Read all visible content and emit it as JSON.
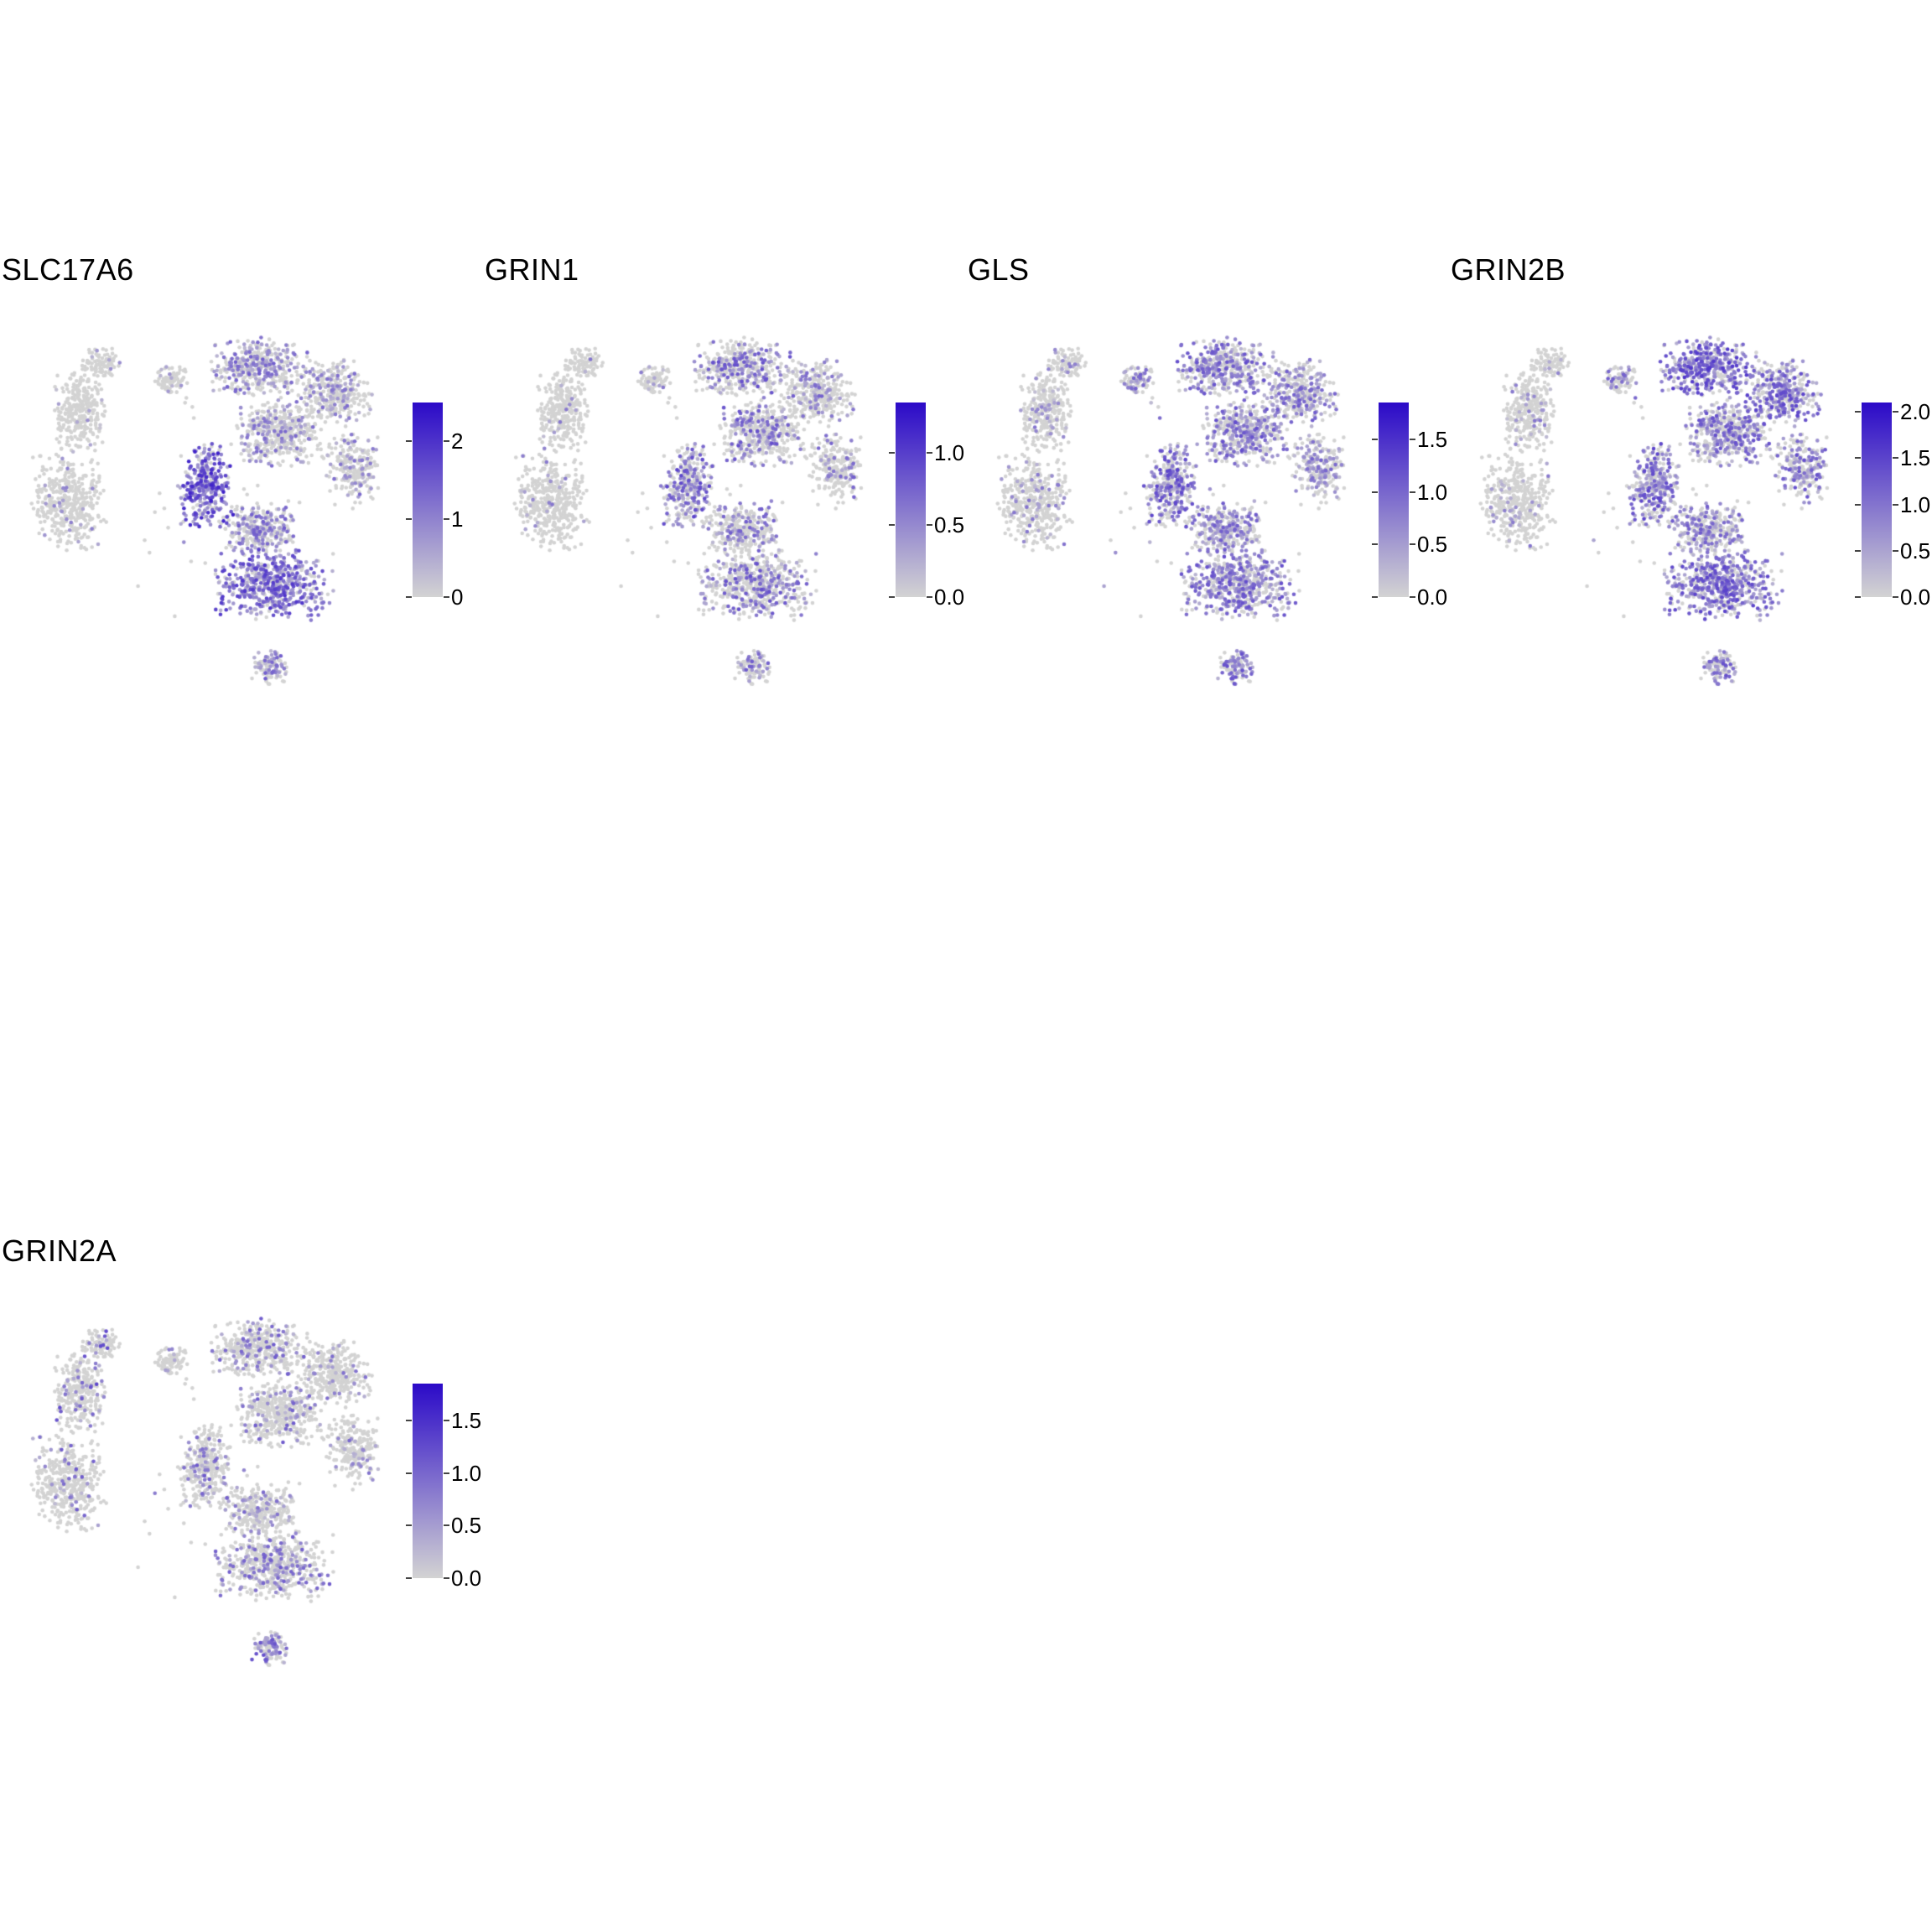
{
  "chart_data": {
    "type": "scatter",
    "subtype": "umap-feature-plot-grid",
    "description_fields": {
      "grid": "5 UMAP feature plots, 4 on top row, 1 on second row",
      "legend_position": "right of each plot, vertical colourbar"
    },
    "colors": {
      "low": "#d3d3d3",
      "high": "#2b0ac8",
      "background": "#ffffff"
    },
    "point_radius": 2.3,
    "clusters": [
      {
        "id": "left-hook",
        "cx": 0.24,
        "cy": 0.09,
        "rx": 0.055,
        "ry": 0.045,
        "n": 90
      },
      {
        "id": "left-upper",
        "cx": 0.185,
        "cy": 0.22,
        "rx": 0.075,
        "ry": 0.115,
        "n": 300
      },
      {
        "id": "left-lower",
        "cx": 0.155,
        "cy": 0.47,
        "rx": 0.105,
        "ry": 0.145,
        "n": 420
      },
      {
        "id": "iso-blob",
        "cx": 0.425,
        "cy": 0.135,
        "rx": 0.05,
        "ry": 0.04,
        "n": 80
      },
      {
        "id": "main-top",
        "cx": 0.655,
        "cy": 0.1,
        "rx": 0.135,
        "ry": 0.085,
        "n": 420
      },
      {
        "id": "main-upper-right",
        "cx": 0.855,
        "cy": 0.17,
        "rx": 0.1,
        "ry": 0.095,
        "n": 330
      },
      {
        "id": "main-right",
        "cx": 0.905,
        "cy": 0.38,
        "rx": 0.075,
        "ry": 0.105,
        "n": 240
      },
      {
        "id": "main-center",
        "cx": 0.71,
        "cy": 0.28,
        "rx": 0.12,
        "ry": 0.1,
        "n": 430
      },
      {
        "id": "main-left",
        "cx": 0.515,
        "cy": 0.43,
        "rx": 0.075,
        "ry": 0.125,
        "n": 310
      },
      {
        "id": "main-mid-low",
        "cx": 0.655,
        "cy": 0.545,
        "rx": 0.1,
        "ry": 0.075,
        "n": 300
      },
      {
        "id": "main-bottom",
        "cx": 0.69,
        "cy": 0.7,
        "rx": 0.165,
        "ry": 0.105,
        "n": 560
      },
      {
        "id": "bottom-blob",
        "cx": 0.685,
        "cy": 0.925,
        "rx": 0.05,
        "ry": 0.05,
        "n": 100
      },
      {
        "id": "noise",
        "cx": 0.55,
        "cy": 0.42,
        "rx": 0.42,
        "ry": 0.4,
        "n": 50
      }
    ],
    "panels": [
      {
        "title": "SLC17A6",
        "vmax": 2.5,
        "legend_ticks": [
          {
            "label": "0",
            "value": 0
          },
          {
            "label": "1",
            "value": 1
          },
          {
            "label": "2",
            "value": 2
          }
        ],
        "expression": {
          "left-hook": {
            "p": 0.04,
            "m": 0.3
          },
          "left-upper": {
            "p": 0.05,
            "m": 0.3
          },
          "left-lower": {
            "p": 0.06,
            "m": 0.35
          },
          "iso-blob": {
            "p": 0.1,
            "m": 0.3
          },
          "main-top": {
            "p": 0.38,
            "m": 0.5
          },
          "main-upper-right": {
            "p": 0.28,
            "m": 0.45
          },
          "main-right": {
            "p": 0.22,
            "m": 0.45
          },
          "main-center": {
            "p": 0.3,
            "m": 0.45
          },
          "main-left": {
            "p": 0.85,
            "m": 0.75
          },
          "main-mid-low": {
            "p": 0.45,
            "m": 0.5
          },
          "main-bottom": {
            "p": 0.8,
            "m": 0.65
          },
          "bottom-blob": {
            "p": 0.55,
            "m": 0.5
          },
          "noise": {
            "p": 0.2,
            "m": 0.4
          }
        }
      },
      {
        "title": "GRIN1",
        "vmax": 1.35,
        "legend_ticks": [
          {
            "label": "0.0",
            "value": 0
          },
          {
            "label": "0.5",
            "value": 0.5
          },
          {
            "label": "1.0",
            "value": 1.0
          }
        ],
        "expression": {
          "left-hook": {
            "p": 0.05,
            "m": 0.4
          },
          "left-upper": {
            "p": 0.05,
            "m": 0.4
          },
          "left-lower": {
            "p": 0.05,
            "m": 0.4
          },
          "iso-blob": {
            "p": 0.08,
            "m": 0.4
          },
          "main-top": {
            "p": 0.3,
            "m": 0.55
          },
          "main-upper-right": {
            "p": 0.22,
            "m": 0.5
          },
          "main-right": {
            "p": 0.18,
            "m": 0.5
          },
          "main-center": {
            "p": 0.35,
            "m": 0.55
          },
          "main-left": {
            "p": 0.45,
            "m": 0.6
          },
          "main-mid-low": {
            "p": 0.3,
            "m": 0.5
          },
          "main-bottom": {
            "p": 0.35,
            "m": 0.55
          },
          "bottom-blob": {
            "p": 0.35,
            "m": 0.5
          },
          "noise": {
            "p": 0.15,
            "m": 0.5
          }
        }
      },
      {
        "title": "GLS",
        "vmax": 1.85,
        "legend_ticks": [
          {
            "label": "0.0",
            "value": 0
          },
          {
            "label": "0.5",
            "value": 0.5
          },
          {
            "label": "1.0",
            "value": 1.0
          },
          {
            "label": "1.5",
            "value": 1.5
          }
        ],
        "expression": {
          "left-hook": {
            "p": 0.12,
            "m": 0.4
          },
          "left-upper": {
            "p": 0.12,
            "m": 0.4
          },
          "left-lower": {
            "p": 0.12,
            "m": 0.4
          },
          "iso-blob": {
            "p": 0.3,
            "m": 0.5
          },
          "main-top": {
            "p": 0.55,
            "m": 0.55
          },
          "main-upper-right": {
            "p": 0.45,
            "m": 0.5
          },
          "main-right": {
            "p": 0.4,
            "m": 0.5
          },
          "main-center": {
            "p": 0.5,
            "m": 0.55
          },
          "main-left": {
            "p": 0.55,
            "m": 0.6
          },
          "main-mid-low": {
            "p": 0.5,
            "m": 0.5
          },
          "main-bottom": {
            "p": 0.6,
            "m": 0.55
          },
          "bottom-blob": {
            "p": 0.55,
            "m": 0.55
          },
          "noise": {
            "p": 0.25,
            "m": 0.5
          }
        }
      },
      {
        "title": "GRIN2B",
        "vmax": 2.1,
        "legend_ticks": [
          {
            "label": "0.0",
            "value": 0
          },
          {
            "label": "0.5",
            "value": 0.5
          },
          {
            "label": "1.0",
            "value": 1.0
          },
          {
            "label": "1.5",
            "value": 1.5
          },
          {
            "label": "2.0",
            "value": 2.0
          }
        ],
        "expression": {
          "left-hook": {
            "p": 0.08,
            "m": 0.4
          },
          "left-upper": {
            "p": 0.08,
            "m": 0.4
          },
          "left-lower": {
            "p": 0.08,
            "m": 0.4
          },
          "iso-blob": {
            "p": 0.3,
            "m": 0.5
          },
          "main-top": {
            "p": 0.75,
            "m": 0.65
          },
          "main-upper-right": {
            "p": 0.65,
            "m": 0.6
          },
          "main-right": {
            "p": 0.45,
            "m": 0.55
          },
          "main-center": {
            "p": 0.5,
            "m": 0.55
          },
          "main-left": {
            "p": 0.6,
            "m": 0.6
          },
          "main-mid-low": {
            "p": 0.45,
            "m": 0.5
          },
          "main-bottom": {
            "p": 0.7,
            "m": 0.6
          },
          "bottom-blob": {
            "p": 0.55,
            "m": 0.55
          },
          "noise": {
            "p": 0.2,
            "m": 0.5
          }
        }
      },
      {
        "title": "GRIN2A",
        "vmax": 1.85,
        "legend_ticks": [
          {
            "label": "0.0",
            "value": 0
          },
          {
            "label": "0.5",
            "value": 0.5
          },
          {
            "label": "1.0",
            "value": 1.0
          },
          {
            "label": "1.5",
            "value": 1.5
          }
        ],
        "expression": {
          "left-hook": {
            "p": 0.1,
            "m": 0.6
          },
          "left-upper": {
            "p": 0.12,
            "m": 0.6
          },
          "left-lower": {
            "p": 0.08,
            "m": 0.5
          },
          "iso-blob": {
            "p": 0.08,
            "m": 0.4
          },
          "main-top": {
            "p": 0.15,
            "m": 0.5
          },
          "main-upper-right": {
            "p": 0.1,
            "m": 0.45
          },
          "main-right": {
            "p": 0.1,
            "m": 0.45
          },
          "main-center": {
            "p": 0.15,
            "m": 0.5
          },
          "main-left": {
            "p": 0.2,
            "m": 0.5
          },
          "main-mid-low": {
            "p": 0.15,
            "m": 0.45
          },
          "main-bottom": {
            "p": 0.28,
            "m": 0.5
          },
          "bottom-blob": {
            "p": 0.55,
            "m": 0.55
          },
          "noise": {
            "p": 0.1,
            "m": 0.5
          }
        }
      }
    ]
  }
}
